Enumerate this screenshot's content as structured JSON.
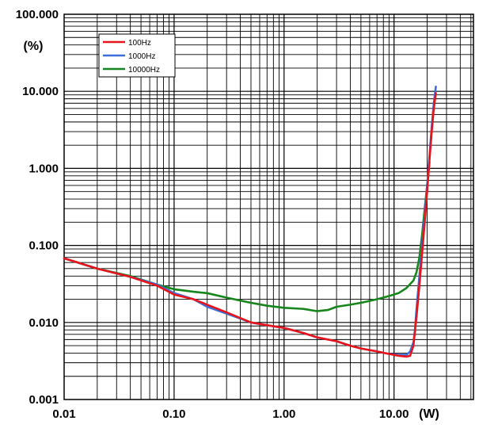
{
  "chart_data": {
    "type": "line",
    "title": "",
    "xlabel": "(W)",
    "ylabel": "(%)",
    "xscale": "log",
    "yscale": "log",
    "xlim": [
      0.01,
      30
    ],
    "ylim": [
      0.001,
      100
    ],
    "x_ticks": [
      {
        "value": 0.01,
        "label": "0.01"
      },
      {
        "value": 0.1,
        "label": "0.10"
      },
      {
        "value": 1,
        "label": "1.00"
      },
      {
        "value": 10,
        "label": "10.00"
      }
    ],
    "y_ticks": [
      {
        "value": 0.001,
        "label": "0.001"
      },
      {
        "value": 0.01,
        "label": "0.010"
      },
      {
        "value": 0.1,
        "label": "0.100"
      },
      {
        "value": 1,
        "label": "1.000"
      },
      {
        "value": 10,
        "label": "10.000"
      },
      {
        "value": 100,
        "label": "100.000"
      }
    ],
    "grid": true,
    "legend_position": "top-left",
    "series": [
      {
        "name": "100Hz",
        "color": "#e8141b",
        "points": [
          [
            0.01,
            0.068
          ],
          [
            0.02,
            0.05
          ],
          [
            0.04,
            0.039
          ],
          [
            0.07,
            0.03
          ],
          [
            0.1,
            0.023
          ],
          [
            0.15,
            0.02
          ],
          [
            0.2,
            0.017
          ],
          [
            0.3,
            0.0135
          ],
          [
            0.5,
            0.01
          ],
          [
            0.7,
            0.0092
          ],
          [
            1.0,
            0.0085
          ],
          [
            1.5,
            0.0073
          ],
          [
            2.0,
            0.0064
          ],
          [
            3.0,
            0.0057
          ],
          [
            4.0,
            0.005
          ],
          [
            5.0,
            0.0046
          ],
          [
            7.0,
            0.0042
          ],
          [
            9.0,
            0.0039
          ],
          [
            11.0,
            0.0037
          ],
          [
            13.0,
            0.0036
          ],
          [
            14.0,
            0.0037
          ],
          [
            15.0,
            0.005
          ],
          [
            16.0,
            0.012
          ],
          [
            17.0,
            0.03
          ],
          [
            18.0,
            0.08
          ],
          [
            19.0,
            0.2
          ],
          [
            20.0,
            0.5
          ],
          [
            21.0,
            1.3
          ],
          [
            22.0,
            3.0
          ],
          [
            23.0,
            6.0
          ],
          [
            24.0,
            9.5
          ]
        ]
      },
      {
        "name": "1000Hz",
        "color": "#3a6fd8",
        "points": [
          [
            0.01,
            0.068
          ],
          [
            0.02,
            0.05
          ],
          [
            0.04,
            0.039
          ],
          [
            0.07,
            0.031
          ],
          [
            0.1,
            0.024
          ],
          [
            0.15,
            0.02
          ],
          [
            0.2,
            0.016
          ],
          [
            0.3,
            0.013
          ],
          [
            0.5,
            0.01
          ],
          [
            0.7,
            0.0092
          ],
          [
            1.0,
            0.0085
          ],
          [
            1.5,
            0.0073
          ],
          [
            2.0,
            0.0064
          ],
          [
            3.0,
            0.0057
          ],
          [
            4.0,
            0.005
          ],
          [
            5.0,
            0.0046
          ],
          [
            7.0,
            0.0042
          ],
          [
            9.0,
            0.0039
          ],
          [
            11.0,
            0.0038
          ],
          [
            13.0,
            0.0038
          ],
          [
            14.0,
            0.0042
          ],
          [
            15.0,
            0.0055
          ],
          [
            15.5,
            0.008
          ],
          [
            16.0,
            0.015
          ],
          [
            17.0,
            0.04
          ],
          [
            18.0,
            0.1
          ],
          [
            19.0,
            0.25
          ],
          [
            20.0,
            0.6
          ],
          [
            21.0,
            1.5
          ],
          [
            22.0,
            3.5
          ],
          [
            23.0,
            7.0
          ],
          [
            24.0,
            11.5
          ]
        ]
      },
      {
        "name": "10000Hz",
        "color": "#16861c",
        "points": [
          [
            0.01,
            0.068
          ],
          [
            0.02,
            0.05
          ],
          [
            0.04,
            0.04
          ],
          [
            0.07,
            0.031
          ],
          [
            0.1,
            0.027
          ],
          [
            0.15,
            0.025
          ],
          [
            0.2,
            0.024
          ],
          [
            0.3,
            0.021
          ],
          [
            0.5,
            0.018
          ],
          [
            0.7,
            0.0165
          ],
          [
            1.0,
            0.0155
          ],
          [
            1.5,
            0.015
          ],
          [
            2.0,
            0.014
          ],
          [
            2.5,
            0.0145
          ],
          [
            3.0,
            0.016
          ],
          [
            4.0,
            0.017
          ],
          [
            5.0,
            0.018
          ],
          [
            7.0,
            0.02
          ],
          [
            9.0,
            0.022
          ],
          [
            11.0,
            0.024
          ],
          [
            13.0,
            0.028
          ],
          [
            15.0,
            0.035
          ],
          [
            16.0,
            0.045
          ],
          [
            17.0,
            0.07
          ],
          [
            18.0,
            0.14
          ],
          [
            19.0,
            0.3
          ],
          [
            20.0,
            0.6
          ],
          [
            21.0,
            1.2
          ]
        ]
      }
    ]
  }
}
